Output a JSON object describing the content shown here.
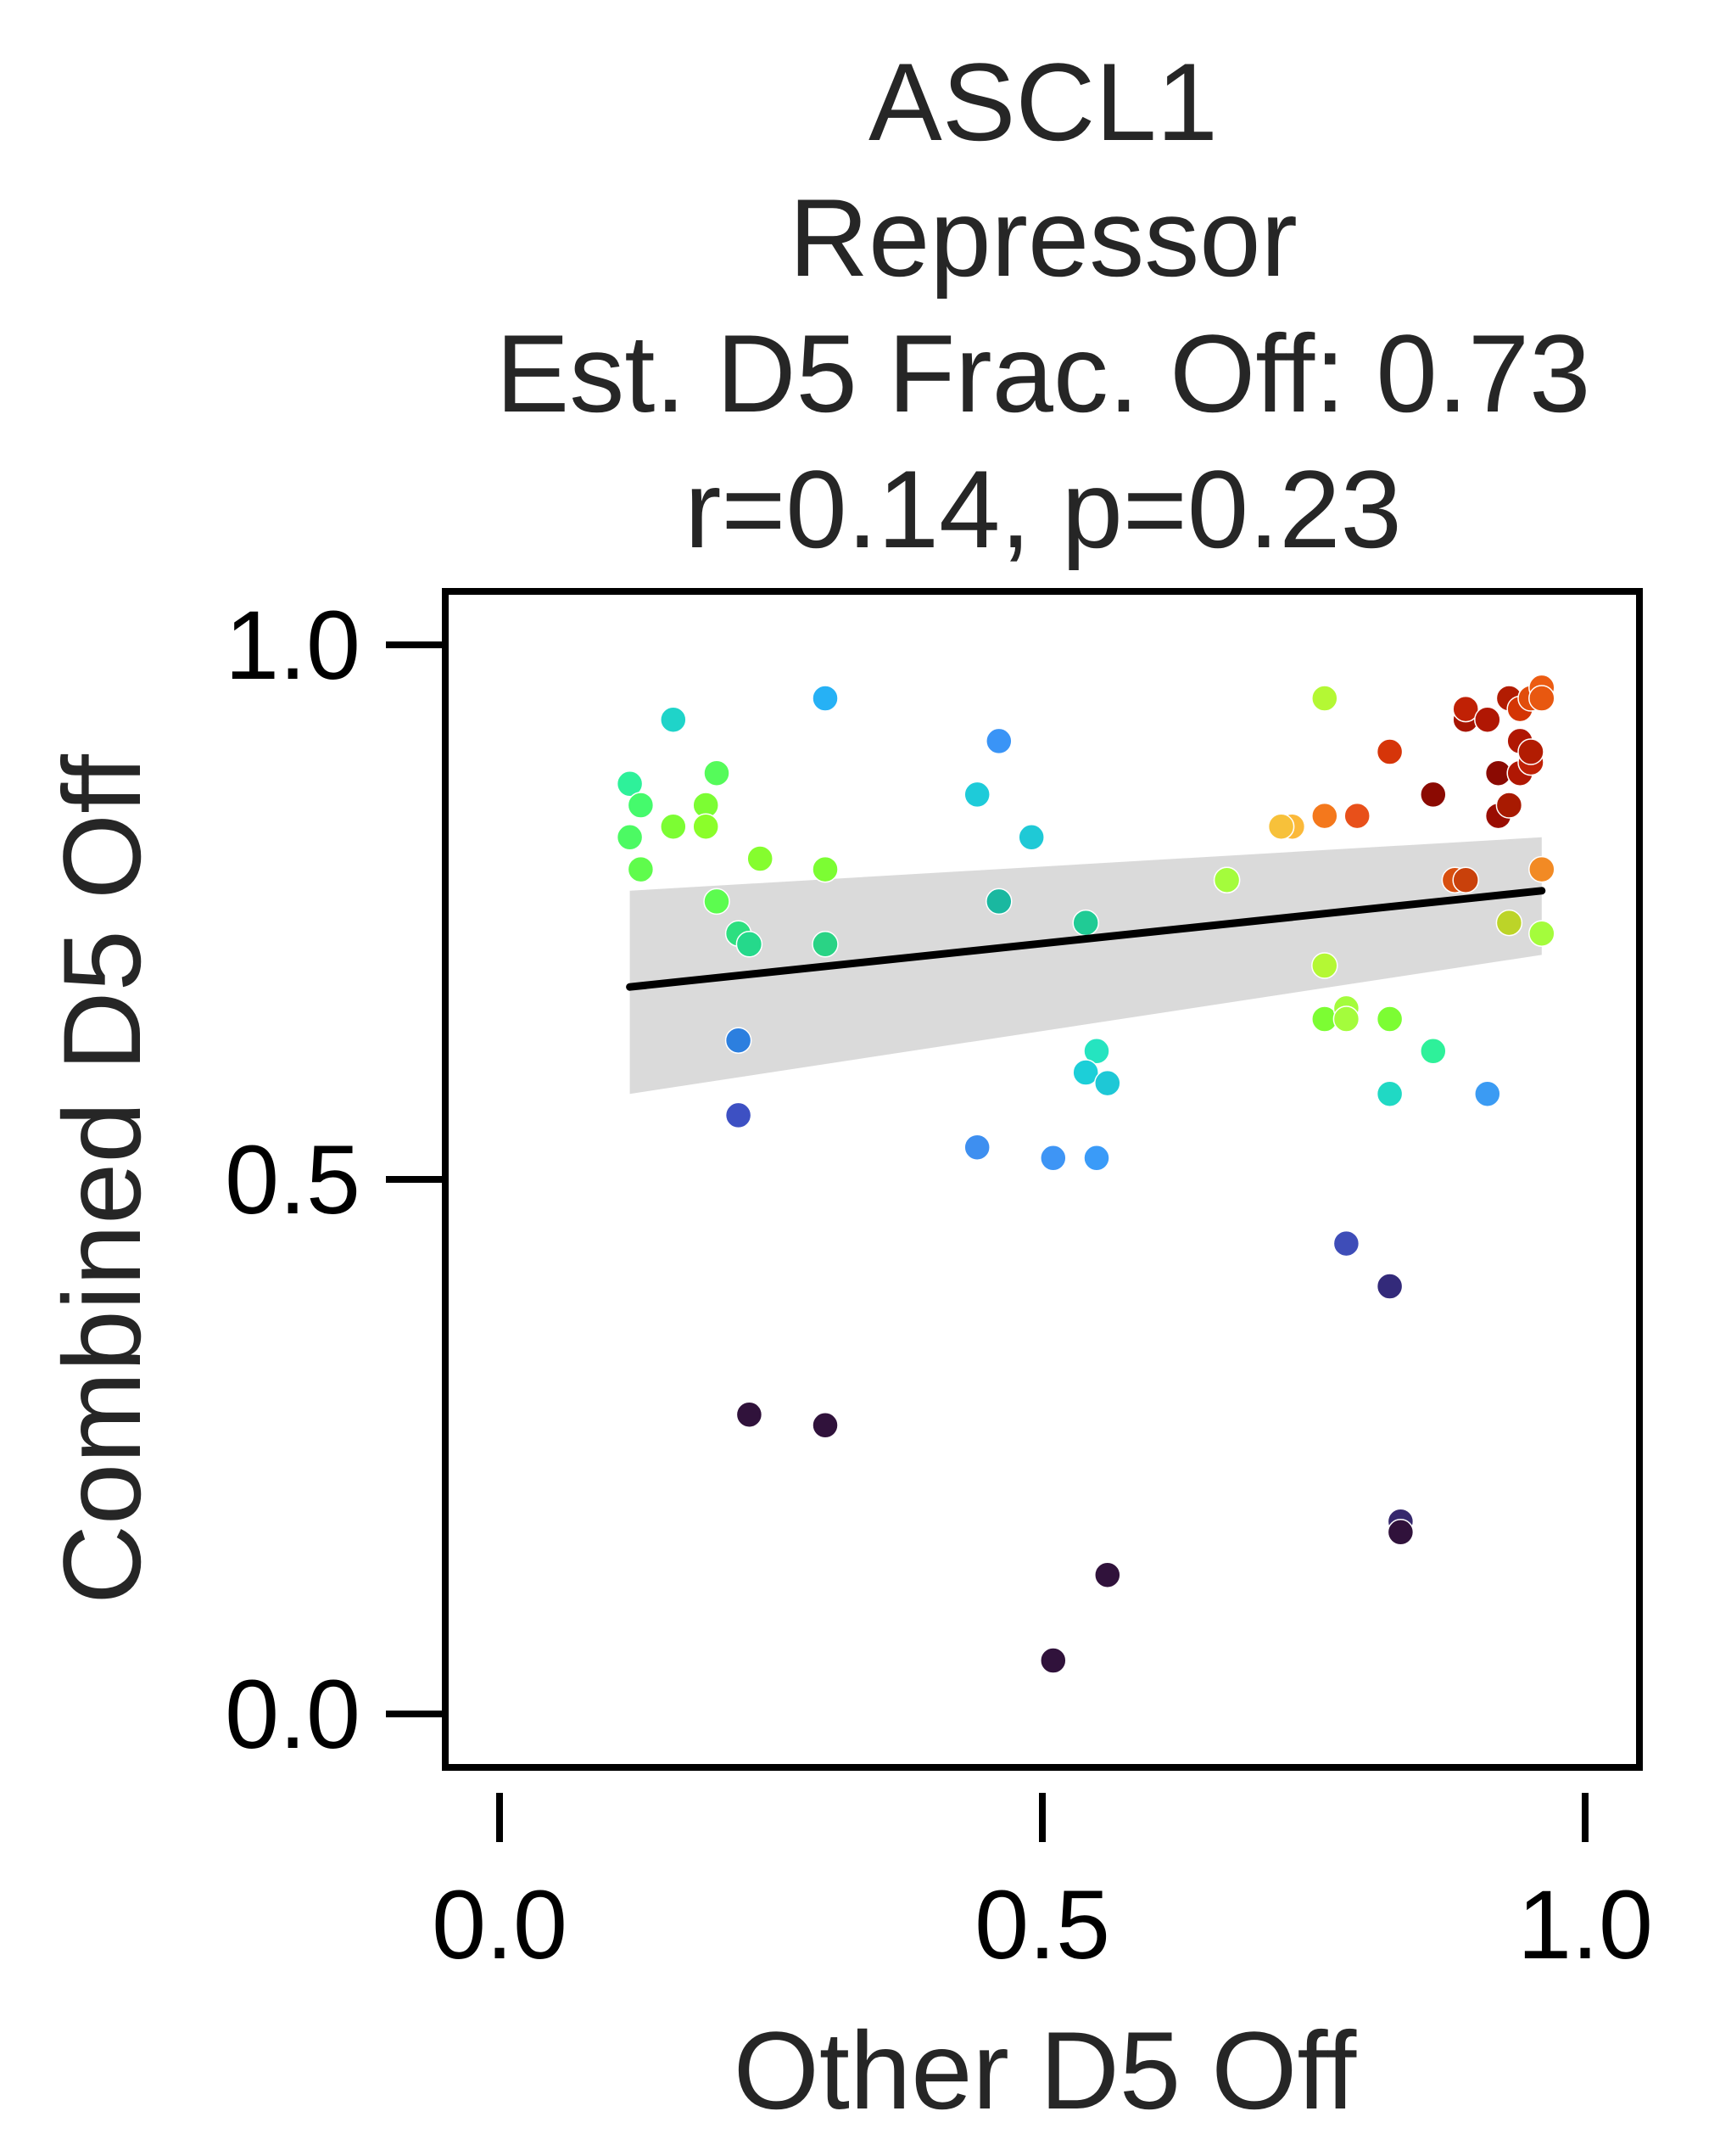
{
  "chart_data": {
    "type": "scatter",
    "title_lines": [
      "ASCL1",
      "Repressor",
      "Est. D5 Frac. Off: 0.73",
      "r=0.14, p=0.23"
    ],
    "xlabel": "Other D5 Off",
    "ylabel": "Combined D5 Off",
    "xlim": [
      -0.05,
      1.05
    ],
    "ylim": [
      -0.05,
      1.05
    ],
    "xticks": [
      0.0,
      0.5,
      1.0
    ],
    "yticks": [
      0.0,
      0.5,
      1.0
    ],
    "xtick_labels": [
      "0.0",
      "0.5",
      "1.0"
    ],
    "ytick_labels": [
      "0.0",
      "0.5",
      "1.0"
    ],
    "grid": false,
    "regression": {
      "x": [
        0.12,
        0.96
      ],
      "y": [
        0.68,
        0.77
      ],
      "ci_lower": [
        0.58,
        0.71
      ],
      "ci_upper": [
        0.77,
        0.82
      ]
    },
    "points": [
      {
        "x": 0.12,
        "y": 0.87,
        "color": "#2ef19a"
      },
      {
        "x": 0.13,
        "y": 0.85,
        "color": "#45fa6c"
      },
      {
        "x": 0.12,
        "y": 0.82,
        "color": "#4cfa63"
      },
      {
        "x": 0.13,
        "y": 0.79,
        "color": "#5ffc4c"
      },
      {
        "x": 0.16,
        "y": 0.83,
        "color": "#7cfd33"
      },
      {
        "x": 0.16,
        "y": 0.93,
        "color": "#1fd4c9"
      },
      {
        "x": 0.19,
        "y": 0.85,
        "color": "#7cfd33"
      },
      {
        "x": 0.19,
        "y": 0.83,
        "color": "#8bfe2a"
      },
      {
        "x": 0.2,
        "y": 0.88,
        "color": "#55fb5a"
      },
      {
        "x": 0.2,
        "y": 0.76,
        "color": "#5cfc4f"
      },
      {
        "x": 0.22,
        "y": 0.73,
        "color": "#2ddf80"
      },
      {
        "x": 0.23,
        "y": 0.72,
        "color": "#25d98b"
      },
      {
        "x": 0.24,
        "y": 0.8,
        "color": "#85fd2e"
      },
      {
        "x": 0.22,
        "y": 0.63,
        "color": "#2c7fdf"
      },
      {
        "x": 0.22,
        "y": 0.56,
        "color": "#3d50c3"
      },
      {
        "x": 0.23,
        "y": 0.28,
        "color": "#30123b"
      },
      {
        "x": 0.3,
        "y": 0.95,
        "color": "#26b1f5"
      },
      {
        "x": 0.3,
        "y": 0.79,
        "color": "#7cfd33"
      },
      {
        "x": 0.3,
        "y": 0.72,
        "color": "#2ad385"
      },
      {
        "x": 0.3,
        "y": 0.27,
        "color": "#30123b"
      },
      {
        "x": 0.44,
        "y": 0.86,
        "color": "#1ecbd9"
      },
      {
        "x": 0.44,
        "y": 0.53,
        "color": "#3e8ff0"
      },
      {
        "x": 0.46,
        "y": 0.91,
        "color": "#3a94f6"
      },
      {
        "x": 0.46,
        "y": 0.76,
        "color": "#1ab8a0"
      },
      {
        "x": 0.49,
        "y": 0.82,
        "color": "#1fc9d6"
      },
      {
        "x": 0.51,
        "y": 0.52,
        "color": "#3e95f5"
      },
      {
        "x": 0.51,
        "y": 0.05,
        "color": "#30123b"
      },
      {
        "x": 0.54,
        "y": 0.74,
        "color": "#20cb95"
      },
      {
        "x": 0.55,
        "y": 0.62,
        "color": "#25e4c0"
      },
      {
        "x": 0.54,
        "y": 0.6,
        "color": "#1ccfd8"
      },
      {
        "x": 0.56,
        "y": 0.59,
        "color": "#1ec8d6"
      },
      {
        "x": 0.55,
        "y": 0.52,
        "color": "#3a9bf8"
      },
      {
        "x": 0.56,
        "y": 0.13,
        "color": "#30123b"
      },
      {
        "x": 0.67,
        "y": 0.78,
        "color": "#aef227"
      },
      {
        "x": 0.67,
        "y": 0.78,
        "color": "#a4fc3c"
      },
      {
        "x": 0.73,
        "y": 0.83,
        "color": "#fbb93a"
      },
      {
        "x": 0.72,
        "y": 0.83,
        "color": "#f7c13a"
      },
      {
        "x": 0.76,
        "y": 0.84,
        "color": "#f4781c"
      },
      {
        "x": 0.79,
        "y": 0.84,
        "color": "#e8501a"
      },
      {
        "x": 0.76,
        "y": 0.95,
        "color": "#b4f834"
      },
      {
        "x": 0.76,
        "y": 0.7,
        "color": "#b4f834"
      },
      {
        "x": 0.76,
        "y": 0.65,
        "color": "#7cfd33"
      },
      {
        "x": 0.78,
        "y": 0.66,
        "color": "#a4fc3c"
      },
      {
        "x": 0.78,
        "y": 0.65,
        "color": "#a4fc3c"
      },
      {
        "x": 0.78,
        "y": 0.44,
        "color": "#3e4db8"
      },
      {
        "x": 0.82,
        "y": 0.9,
        "color": "#d63509"
      },
      {
        "x": 0.82,
        "y": 0.65,
        "color": "#7cfd33"
      },
      {
        "x": 0.82,
        "y": 0.58,
        "color": "#20d9c4"
      },
      {
        "x": 0.82,
        "y": 0.4,
        "color": "#332a7a"
      },
      {
        "x": 0.83,
        "y": 0.18,
        "color": "#36286d"
      },
      {
        "x": 0.83,
        "y": 0.17,
        "color": "#30123b"
      },
      {
        "x": 0.86,
        "y": 0.86,
        "color": "#8b0a02"
      },
      {
        "x": 0.86,
        "y": 0.62,
        "color": "#2ef19a"
      },
      {
        "x": 0.88,
        "y": 0.78,
        "color": "#d84f0f"
      },
      {
        "x": 0.89,
        "y": 0.78,
        "color": "#c9410b"
      },
      {
        "x": 0.89,
        "y": 0.93,
        "color": "#a71401"
      },
      {
        "x": 0.89,
        "y": 0.94,
        "color": "#c02105"
      },
      {
        "x": 0.91,
        "y": 0.93,
        "color": "#b01703"
      },
      {
        "x": 0.91,
        "y": 0.58,
        "color": "#3b9bf3"
      },
      {
        "x": 0.92,
        "y": 0.88,
        "color": "#8b0a02"
      },
      {
        "x": 0.92,
        "y": 0.84,
        "color": "#9a0d02"
      },
      {
        "x": 0.93,
        "y": 0.85,
        "color": "#a81a01"
      },
      {
        "x": 0.93,
        "y": 0.74,
        "color": "#bcd428"
      },
      {
        "x": 0.93,
        "y": 0.95,
        "color": "#b21c02"
      },
      {
        "x": 0.94,
        "y": 0.94,
        "color": "#d43504"
      },
      {
        "x": 0.94,
        "y": 0.91,
        "color": "#b01703"
      },
      {
        "x": 0.94,
        "y": 0.88,
        "color": "#b01703"
      },
      {
        "x": 0.95,
        "y": 0.89,
        "color": "#c02105"
      },
      {
        "x": 0.95,
        "y": 0.9,
        "color": "#b21c02"
      },
      {
        "x": 0.95,
        "y": 0.95,
        "color": "#e14d0b"
      },
      {
        "x": 0.96,
        "y": 0.96,
        "color": "#ec5c12"
      },
      {
        "x": 0.96,
        "y": 0.95,
        "color": "#e85810"
      },
      {
        "x": 0.96,
        "y": 0.79,
        "color": "#f28a24"
      },
      {
        "x": 0.96,
        "y": 0.73,
        "color": "#a4fc3c"
      }
    ]
  }
}
